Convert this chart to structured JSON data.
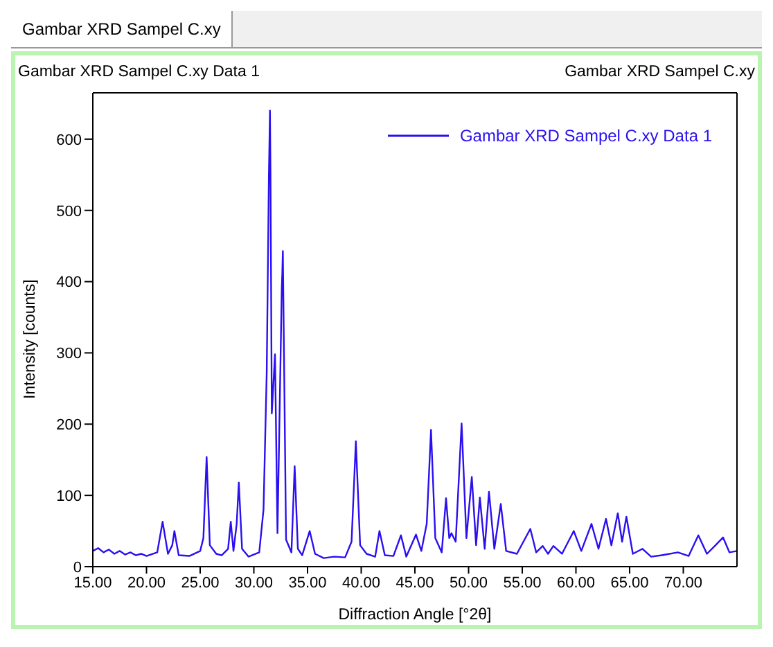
{
  "chart_data": {
    "type": "line",
    "title": "Gambar XRD Sampel C.xy Data 1",
    "annotations": [
      "Gambar XRD Sampel C.xy",
      "Gambar XRD Sampel C.xy"
    ],
    "xlabel": "Diffraction Angle [°2θ]",
    "ylabel": "Intensity [counts]",
    "x": [
      15,
      15.5,
      16,
      16.5,
      17,
      17.5,
      18,
      18.5,
      19,
      19.5,
      20,
      21,
      21.5,
      22,
      22.4,
      22.6,
      23,
      24,
      25,
      25.3,
      25.6,
      25.9,
      26.5,
      27,
      27.6,
      27.85,
      28.1,
      28.4,
      28.6,
      28.9,
      29.5,
      30.5,
      30.9,
      31.2,
      31.4,
      31.5,
      31.55,
      31.67,
      31.97,
      32.2,
      32.6,
      32.65,
      32.7,
      33.0,
      33.5,
      33.8,
      34.1,
      34.5,
      35.2,
      35.7,
      36.5,
      37.5,
      38.5,
      39.1,
      39.5,
      39.9,
      40.5,
      41.3,
      41.7,
      42.2,
      43,
      43.7,
      44.2,
      45.1,
      45.6,
      46.1,
      46.5,
      46.9,
      47.5,
      47.9,
      48.2,
      48.4,
      48.8,
      49.35,
      49.8,
      50.3,
      50.7,
      51.05,
      51.5,
      51.9,
      52.4,
      53.0,
      53.5,
      54.5,
      55.75,
      56.3,
      56.9,
      57.4,
      57.9,
      58.7,
      59.8,
      60.5,
      61.45,
      62.1,
      62.8,
      63.3,
      63.9,
      64.3,
      64.7,
      65.3,
      66.2,
      67,
      68,
      69.5,
      70.5,
      71.4,
      72.2,
      73,
      73.7,
      74.3,
      75
    ],
    "series": [
      {
        "name": "Gambar XRD Sampel C.xy Data 1",
        "color": "#2a0ff0",
        "values": [
          22,
          26,
          20,
          24,
          18,
          22,
          17,
          20,
          16,
          18,
          15,
          20,
          63,
          18,
          30,
          50,
          16,
          15,
          22,
          40,
          154,
          30,
          18,
          16,
          25,
          63,
          22,
          60,
          118,
          25,
          14,
          20,
          80,
          274,
          548,
          640,
          550,
          215,
          298,
          47,
          390,
          412,
          443,
          38,
          20,
          141,
          25,
          16,
          50,
          18,
          12,
          14,
          13,
          35,
          176,
          30,
          18,
          14,
          50,
          16,
          15,
          44,
          14,
          45,
          22,
          60,
          192,
          40,
          20,
          96,
          40,
          47,
          35,
          201,
          40,
          126,
          30,
          97,
          25,
          105,
          25,
          88,
          22,
          18,
          53,
          20,
          29,
          18,
          29,
          18,
          50,
          22,
          60,
          25,
          67,
          30,
          75,
          35,
          70,
          18,
          25,
          14,
          16,
          20,
          15,
          44,
          18,
          30,
          41,
          20,
          22
        ]
      }
    ],
    "xlim": [
      15,
      75
    ],
    "xticks": [
      {
        "value": 15,
        "label": "15.00"
      },
      {
        "value": 20,
        "label": "20.00"
      },
      {
        "value": 25,
        "label": "25.00"
      },
      {
        "value": 30,
        "label": "30.00"
      },
      {
        "value": 35,
        "label": "35.00"
      },
      {
        "value": 40,
        "label": "40.00"
      },
      {
        "value": 45,
        "label": "45.00"
      },
      {
        "value": 50,
        "label": "50.00"
      },
      {
        "value": 55,
        "label": "55.00"
      },
      {
        "value": 60,
        "label": "60.00"
      },
      {
        "value": 65,
        "label": "65.00"
      },
      {
        "value": 70,
        "label": "70.00"
      }
    ],
    "ylim": [
      0,
      665
    ],
    "yticks": [
      0,
      100,
      200,
      300,
      400,
      500,
      600
    ],
    "legend": "top right",
    "marker": "none",
    "line_style": "solid"
  }
}
